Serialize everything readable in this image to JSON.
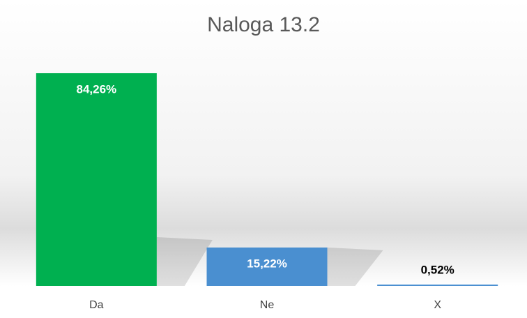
{
  "chart_data": {
    "type": "bar",
    "title": "Naloga 13.2",
    "categories": [
      "Da",
      "Ne",
      "X"
    ],
    "values": [
      84.26,
      15.22,
      0.52
    ],
    "value_labels": [
      "84,26%",
      "15,22%",
      "0,52%"
    ],
    "colors": [
      "#00b050",
      "#4a8fd0",
      "#4a8fd0"
    ]
  }
}
